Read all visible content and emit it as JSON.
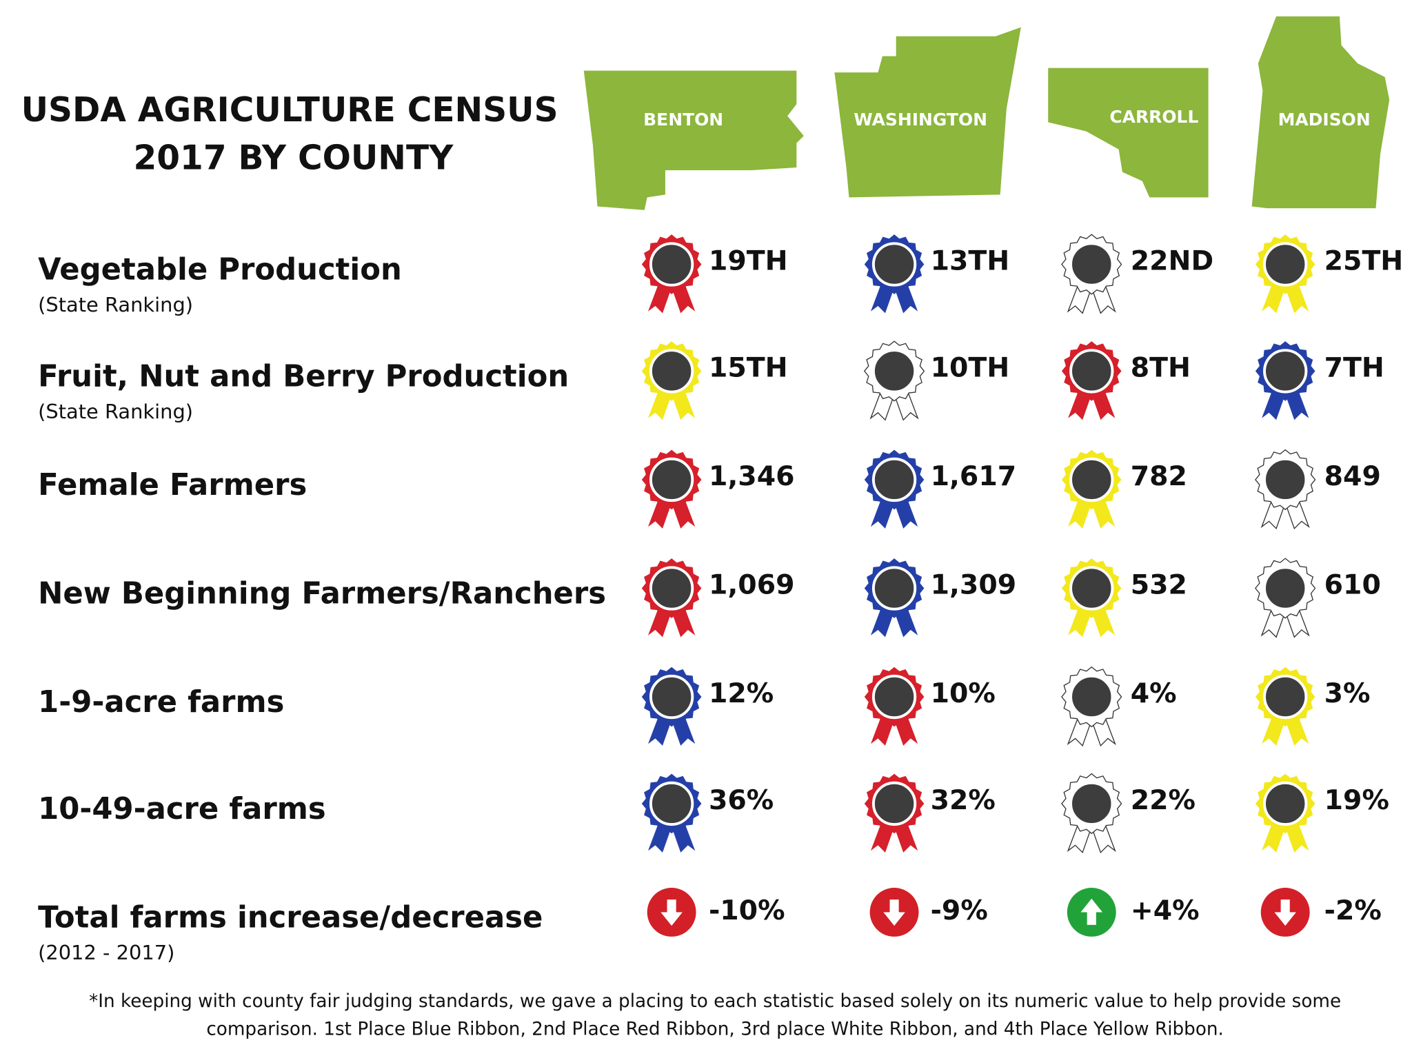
{
  "header": {
    "title_lines": [
      "USDA AGRICULTURE CENSUS",
      "2017 BY COUNTY"
    ]
  },
  "counties": [
    "BENTON",
    "WASHINGTON",
    "CARROLL",
    "MADISON"
  ],
  "rows": [
    {
      "label": "Vegetable Production",
      "sublabel": "(State Ranking)",
      "cells": [
        {
          "text": "19TH",
          "ribbon": "red"
        },
        {
          "text": "13TH",
          "ribbon": "blue"
        },
        {
          "text": "22ND",
          "ribbon": "white"
        },
        {
          "text": "25TH",
          "ribbon": "yellow"
        }
      ]
    },
    {
      "label": "Fruit, Nut and Berry Production",
      "sublabel": "(State Ranking)",
      "cells": [
        {
          "text": "15TH",
          "ribbon": "yellow"
        },
        {
          "text": "10TH",
          "ribbon": "white"
        },
        {
          "text": "8TH",
          "ribbon": "red"
        },
        {
          "text": "7TH",
          "ribbon": "blue"
        }
      ]
    },
    {
      "label": "Female Farmers",
      "cells": [
        {
          "text": "1,346",
          "ribbon": "red"
        },
        {
          "text": "1,617",
          "ribbon": "blue"
        },
        {
          "text": "782",
          "ribbon": "yellow"
        },
        {
          "text": "849",
          "ribbon": "white"
        }
      ]
    },
    {
      "label": "New Beginning Farmers/Ranchers",
      "cells": [
        {
          "text": "1,069",
          "ribbon": "red"
        },
        {
          "text": "1,309",
          "ribbon": "blue"
        },
        {
          "text": "532",
          "ribbon": "yellow"
        },
        {
          "text": "610",
          "ribbon": "white"
        }
      ]
    },
    {
      "label": "1-9-acre farms",
      "cells": [
        {
          "text": "12%",
          "ribbon": "blue"
        },
        {
          "text": "10%",
          "ribbon": "red"
        },
        {
          "text": "4%",
          "ribbon": "white"
        },
        {
          "text": "3%",
          "ribbon": "yellow"
        }
      ]
    },
    {
      "label": "10-49-acre farms",
      "cells": [
        {
          "text": "36%",
          "ribbon": "blue"
        },
        {
          "text": "32%",
          "ribbon": "red"
        },
        {
          "text": "22%",
          "ribbon": "white"
        },
        {
          "text": "19%",
          "ribbon": "yellow"
        }
      ]
    },
    {
      "label": "Total farms increase/decrease",
      "sublabel": "(2012 - 2017)",
      "cells": [
        {
          "text": "-10%",
          "arrow": "down"
        },
        {
          "text": "-9%",
          "arrow": "down"
        },
        {
          "text": "+4%",
          "arrow": "up"
        },
        {
          "text": "-2%",
          "arrow": "down"
        }
      ]
    }
  ],
  "footnote_lines": [
    "*In keeping with county fair judging standards, we gave a placing to each statistic based solely on its numeric value to help provide some",
    "comparison. 1st Place Blue Ribbon, 2nd Place Red Ribbon, 3rd place White Ribbon, and 4th Place Yellow Ribbon."
  ]
}
